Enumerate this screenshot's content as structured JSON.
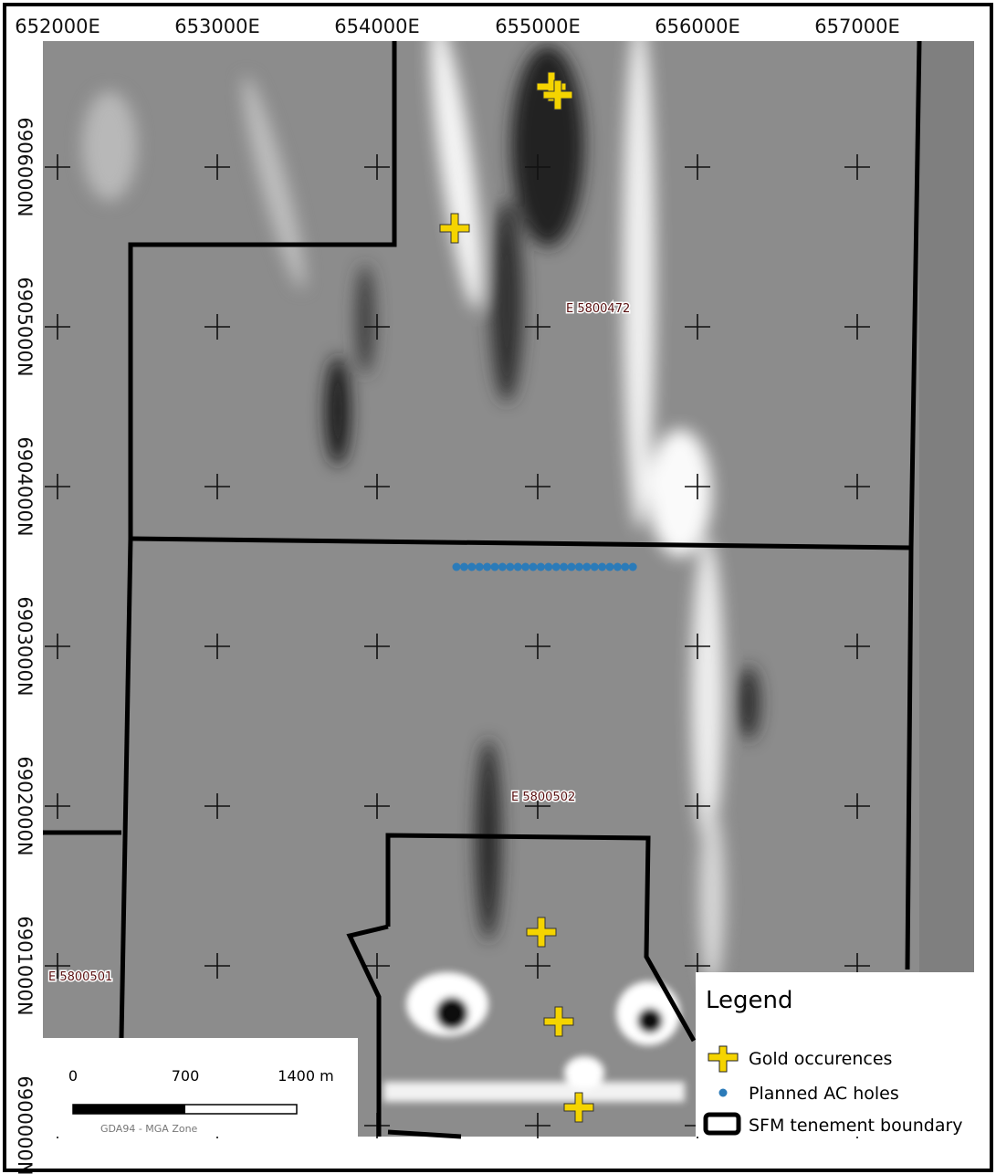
{
  "axes": {
    "eastings": [
      "652000E",
      "653000E",
      "654000E",
      "655000E",
      "656000E",
      "657000E"
    ],
    "northings": [
      "6906000N",
      "6905000N",
      "6904000N",
      "6903000N",
      "6902000N",
      "6901000N",
      "6900000N"
    ]
  },
  "tenements": [
    "E 5800472",
    "E 5800502",
    "E 5800501"
  ],
  "legend": {
    "title": "Legend",
    "items": [
      "Gold occurences",
      "Planned AC holes",
      "SFM tenement boundary"
    ]
  },
  "scale_bar": {
    "ticks": [
      "0",
      "700",
      "1400 m"
    ],
    "projection": "GDA94 - MGA Zone"
  }
}
